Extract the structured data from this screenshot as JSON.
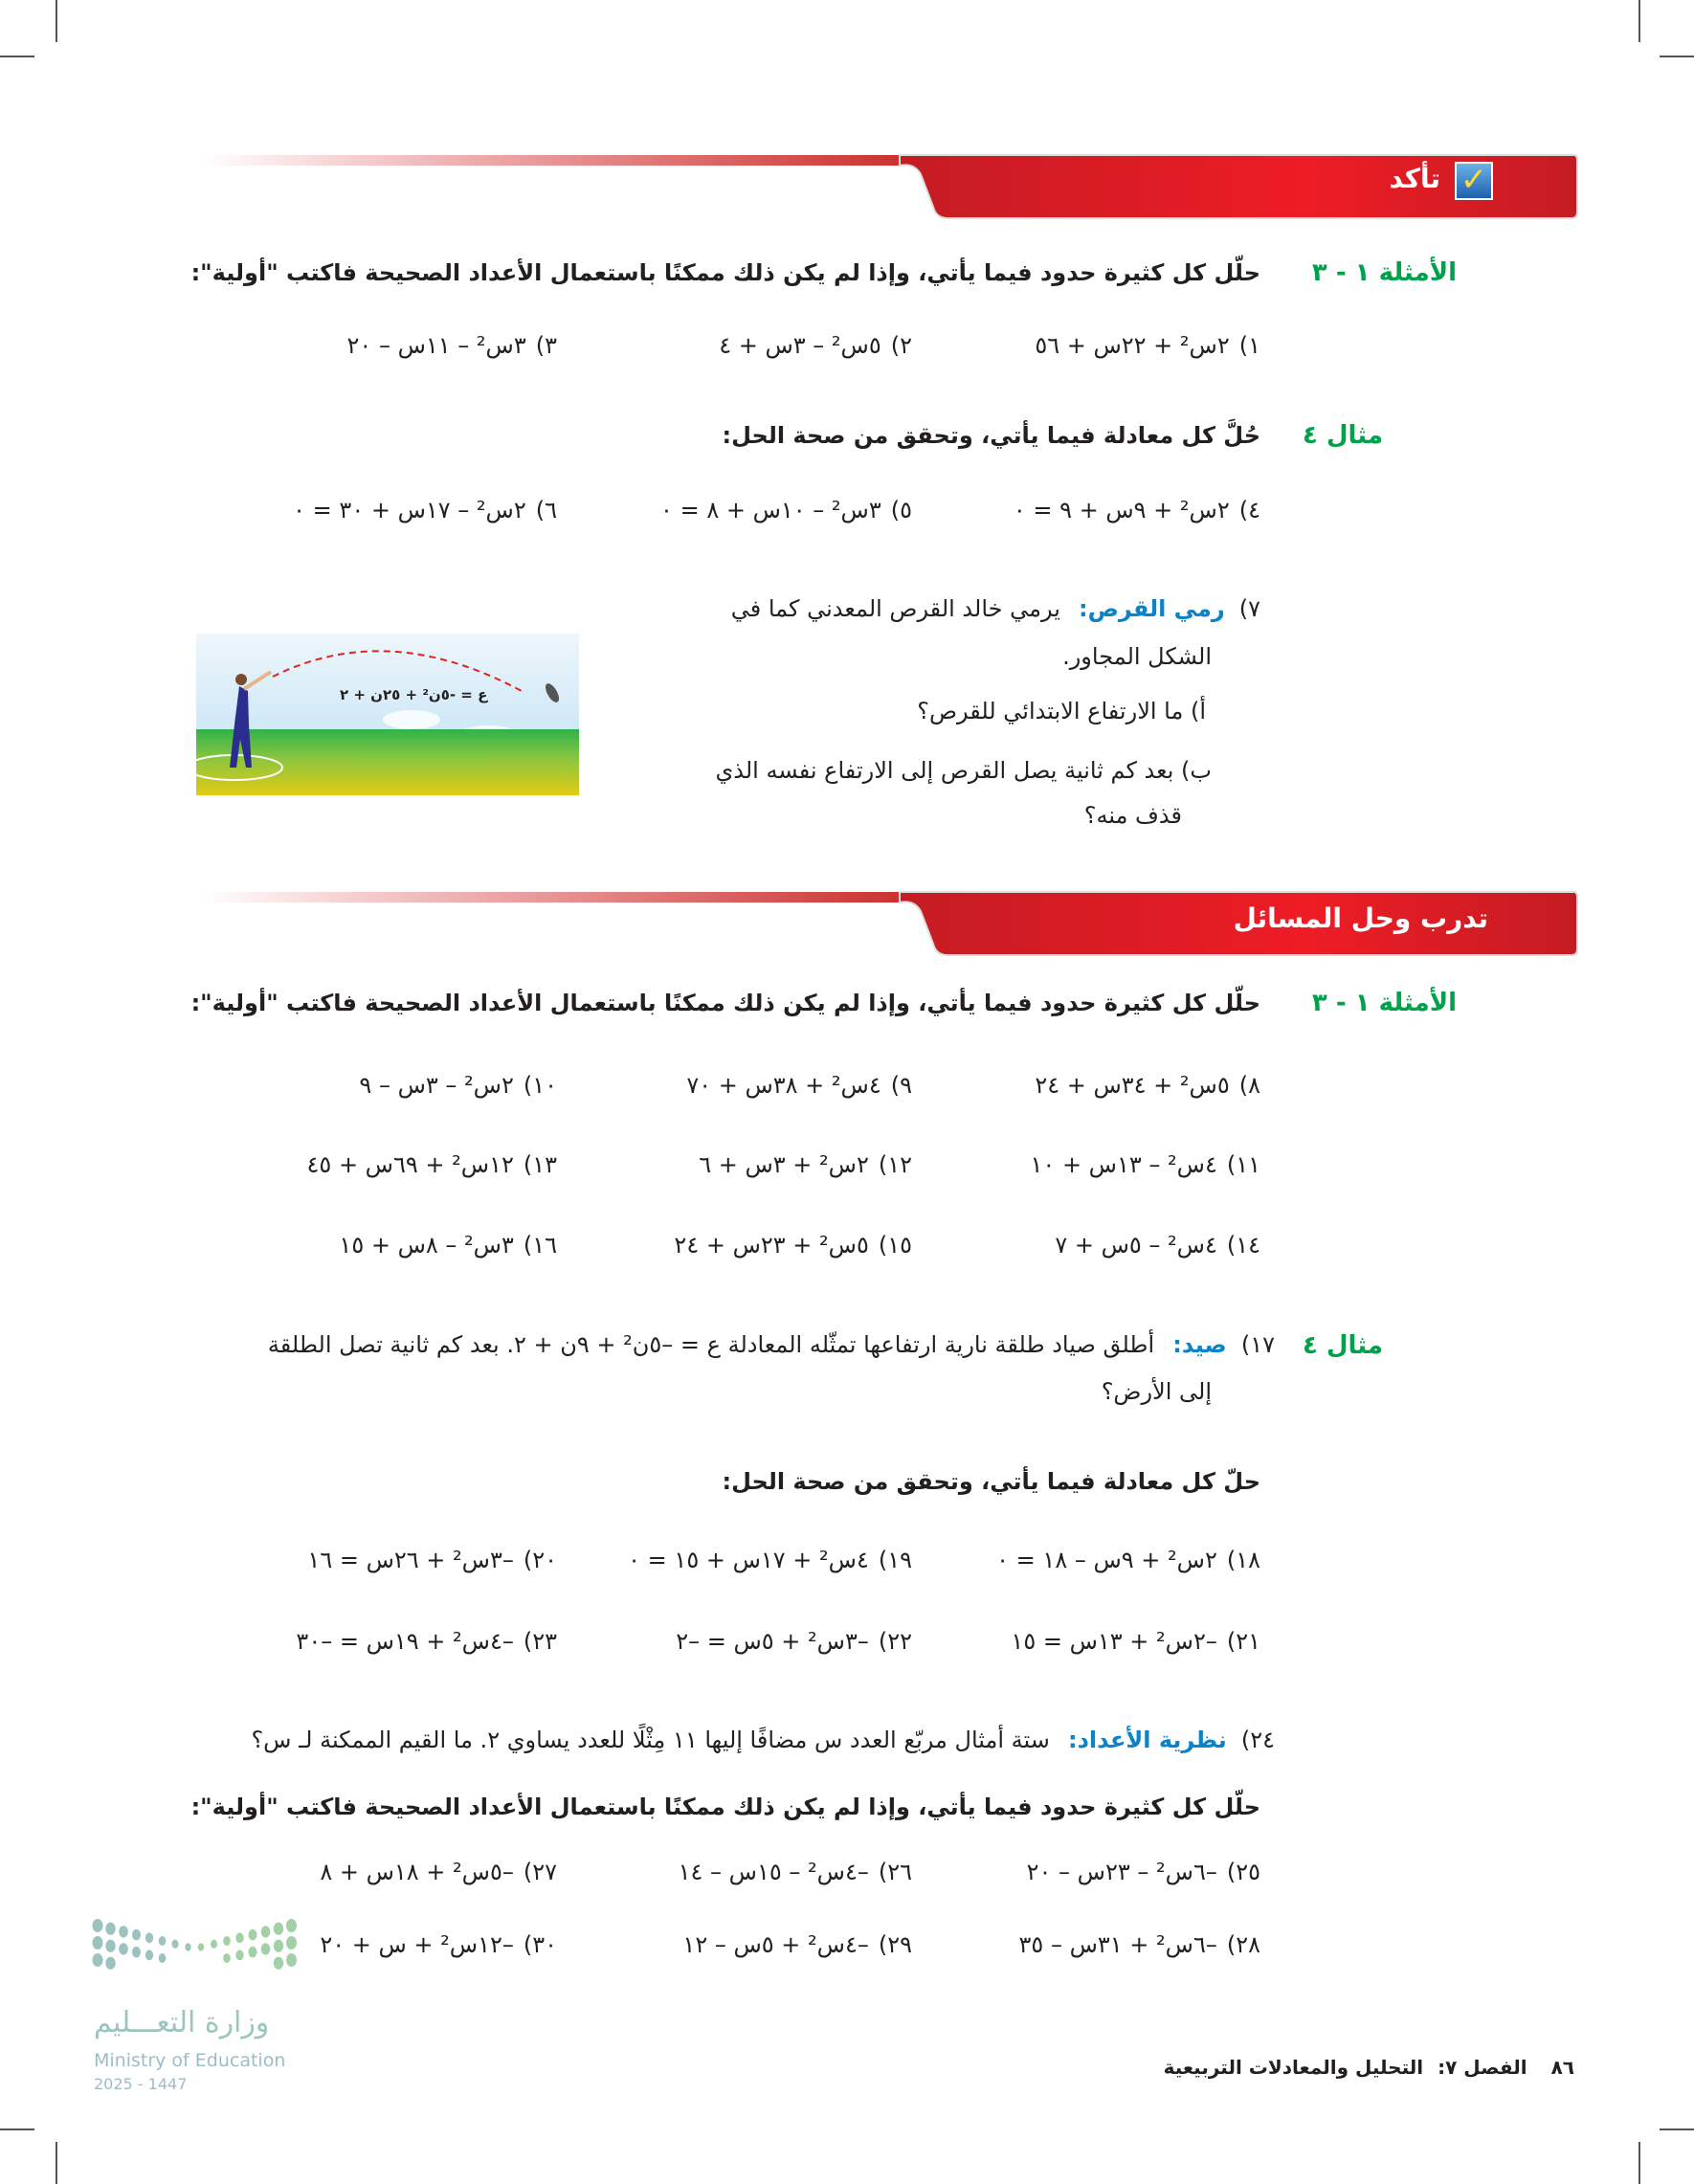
{
  "check_section": {
    "title": "تأكد",
    "icon": "checkbox-check-icon",
    "group1": {
      "label": "الأمثلة ١ - ٣",
      "instruction": "حلّل كل كثيرة حدود فيما يأتي، وإذا لم يكن ذلك ممكنًا باستعمال الأعداد الصحيحة فاكتب \"أولية\":",
      "items": [
        {
          "num": "١)",
          "expr": "٢س² + ٢٢س + ٥٦"
        },
        {
          "num": "٢)",
          "expr": "٥س² – ٣س + ٤"
        },
        {
          "num": "٣)",
          "expr": "٣س² – ١١س – ٢٠"
        }
      ]
    },
    "group2": {
      "label": "مثال ٤",
      "instruction": "حُلَّ كل معادلة فيما يأتي، وتحقق من صحة الحل:",
      "items": [
        {
          "num": "٤)",
          "expr": "٢س² + ٩س + ٩ = ٠"
        },
        {
          "num": "٥)",
          "expr": "٣س² – ١٠س + ٨ = ٠"
        },
        {
          "num": "٦)",
          "expr": "٢س² – ١٧س + ٣٠ = ٠"
        }
      ]
    },
    "problem7": {
      "num": "٧)",
      "keyword": "رمي القرص:",
      "line1": "يرمي خالد القرص المعدني كما في",
      "line2": "الشكل المجاور.",
      "part_a": "أ) ما الارتفاع الابتدائي للقرص؟",
      "part_b_line1": "ب) بعد كم ثانية يصل القرص إلى الارتفاع نفسه الذي",
      "part_b_line2": "قذف منه؟",
      "figure_equation": "ع = -٥ن² + ٢٥ن + ٢"
    }
  },
  "practice_section": {
    "title": "تدرب وحل المسائل",
    "group1": {
      "label": "الأمثلة ١ - ٣",
      "instruction": "حلّل كل كثيرة حدود فيما يأتي، وإذا لم يكن ذلك ممكنًا باستعمال الأعداد الصحيحة فاكتب \"أولية\":",
      "rows": [
        [
          {
            "num": "٨)",
            "expr": "٥س² + ٣٤س + ٢٤"
          },
          {
            "num": "٩)",
            "expr": "٤س² + ٣٨س + ٧٠"
          },
          {
            "num": "١٠)",
            "expr": "٢س² – ٣س – ٩"
          }
        ],
        [
          {
            "num": "١١)",
            "expr": "٤س² – ١٣س + ١٠"
          },
          {
            "num": "١٢)",
            "expr": "٢س² + ٣س + ٦"
          },
          {
            "num": "١٣)",
            "expr": "١٢س² + ٦٩س + ٤٥"
          }
        ],
        [
          {
            "num": "١٤)",
            "expr": "٤س² – ٥س + ٧"
          },
          {
            "num": "١٥)",
            "expr": "٥س² + ٢٣س + ٢٤"
          },
          {
            "num": "١٦)",
            "expr": "٣س² – ٨س + ١٥"
          }
        ]
      ]
    },
    "group2": {
      "label": "مثال ٤",
      "problem17": {
        "num": "١٧)",
        "keyword": "صيد:",
        "line1": "أطلق صياد طلقة نارية ارتفاعها تمثّله المعادلة ع = –٥ن² + ٩ن + ٢. بعد كم ثانية تصل الطلقة",
        "line2": "إلى الأرض؟"
      },
      "instruction": "حلّ كل معادلة فيما يأتي، وتحقق من صحة الحل:",
      "rows": [
        [
          {
            "num": "١٨)",
            "expr": "٢س² + ٩س – ١٨ = ٠"
          },
          {
            "num": "١٩)",
            "expr": "٤س² + ١٧س + ١٥ = ٠"
          },
          {
            "num": "٢٠)",
            "expr": "–٣س² + ٢٦س = ١٦"
          }
        ],
        [
          {
            "num": "٢١)",
            "expr": "–٢س² + ١٣س = ١٥"
          },
          {
            "num": "٢٢)",
            "expr": "–٣س² + ٥س = –٢"
          },
          {
            "num": "٢٣)",
            "expr": "–٤س² + ١٩س = –٣٠"
          }
        ]
      ]
    },
    "problem24": {
      "num": "٢٤)",
      "keyword": "نظرية الأعداد:",
      "text": "ستة أمثال مربّع العدد س مضافًا إليها ١١ مِثْلًا للعدد يساوي ٢. ما القيم الممكنة لـ س؟"
    },
    "group3": {
      "instruction": "حلّل كل كثيرة حدود فيما يأتي، وإذا لم يكن ذلك ممكنًا باستعمال الأعداد الصحيحة فاكتب \"أولية\":",
      "rows": [
        [
          {
            "num": "٢٥)",
            "expr": "–٦س² – ٢٣س – ٢٠"
          },
          {
            "num": "٢٦)",
            "expr": "–٤س² – ١٥س – ١٤"
          },
          {
            "num": "٢٧)",
            "expr": "–٥س² + ١٨س + ٨"
          }
        ],
        [
          {
            "num": "٢٨)",
            "expr": "–٦س² + ٣١س – ٣٥"
          },
          {
            "num": "٢٩)",
            "expr": "–٤س² + ٥س – ١٢"
          },
          {
            "num": "٣٠)",
            "expr": "–١٢س² + س + ٢٠"
          }
        ]
      ]
    }
  },
  "footer": {
    "page_number": "٨٦",
    "chapter": "الفصل ٧:",
    "chapter_title": "التحليل والمعادلات التربيعية"
  },
  "logo": {
    "arabic": "وزارة التعـــليم",
    "english": "Ministry of Education",
    "year": "2025 - 1447"
  },
  "colors": {
    "label_green": "#00a14b",
    "keyword_blue": "#0b83c9",
    "band_red": "#d71f26"
  }
}
